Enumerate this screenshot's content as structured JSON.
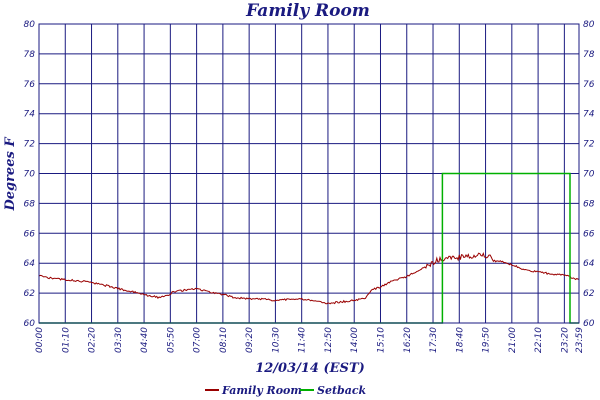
{
  "chart_data": {
    "type": "line",
    "title": "Family Room",
    "xlabel": "12/03/14 (EST)",
    "ylabel": "Degrees F",
    "ylim": [
      60,
      80
    ],
    "xlim_minutes": [
      0,
      1439
    ],
    "y_ticks": [
      "60",
      "62",
      "64",
      "66",
      "68",
      "70",
      "72",
      "74",
      "76",
      "78",
      "80"
    ],
    "x_ticks": [
      "00:00",
      "01:10",
      "02:20",
      "03:30",
      "04:40",
      "05:50",
      "07:00",
      "08:10",
      "09:20",
      "10:30",
      "11:40",
      "12:50",
      "14:00",
      "15:10",
      "16:20",
      "17:30",
      "18:40",
      "19:50",
      "21:00",
      "22:10",
      "23:20",
      "23:59"
    ],
    "grid": true,
    "legend_position": "bottom",
    "colors": {
      "family_room": "#990000",
      "setback": "#00b000",
      "grid": "#1a1a80"
    },
    "series": [
      {
        "name": "Family Room",
        "x": [
          "00:00",
          "00:30",
          "01:10",
          "01:50",
          "02:20",
          "03:00",
          "03:30",
          "04:10",
          "04:40",
          "05:20",
          "05:40",
          "06:00",
          "06:30",
          "07:00",
          "07:30",
          "08:10",
          "08:40",
          "09:20",
          "10:00",
          "10:30",
          "11:10",
          "11:40",
          "12:10",
          "12:50",
          "13:20",
          "14:00",
          "14:30",
          "14:45",
          "15:10",
          "15:40",
          "16:20",
          "16:50",
          "17:20",
          "17:40",
          "18:00",
          "18:40",
          "19:10",
          "19:50",
          "20:20",
          "21:00",
          "21:30",
          "22:10",
          "22:40",
          "23:20",
          "23:59"
        ],
        "values": [
          63.2,
          63.0,
          62.9,
          62.8,
          62.7,
          62.5,
          62.3,
          62.1,
          61.9,
          61.7,
          61.8,
          62.1,
          62.2,
          62.3,
          62.1,
          61.9,
          61.7,
          61.6,
          61.6,
          61.5,
          61.6,
          61.6,
          61.5,
          61.3,
          61.4,
          61.5,
          61.7,
          62.2,
          62.4,
          62.8,
          63.1,
          63.5,
          63.9,
          64.2,
          64.3,
          64.4,
          64.5,
          64.5,
          64.2,
          63.9,
          63.6,
          63.4,
          63.3,
          63.2,
          62.9
        ]
      },
      {
        "name": "Setback",
        "x": [
          "00:00",
          "17:55",
          "17:55",
          "23:35",
          "23:35",
          "23:59"
        ],
        "values": [
          60,
          60,
          70,
          70,
          60,
          60
        ]
      }
    ]
  }
}
